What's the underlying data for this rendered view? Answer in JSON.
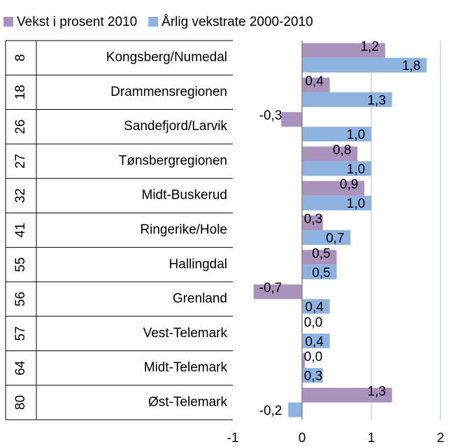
{
  "chart_data": {
    "type": "bar",
    "orientation": "horizontal",
    "categories": [
      "Kongsberg/Numedal",
      "Drammensregionen",
      "Sandefjord/Larvik",
      "Tønsbergregionen",
      "Midt-Buskerud",
      "Ringerike/Hole",
      "Hallingdal",
      "Grenland",
      "Vest-Telemark",
      "Midt-Telemark",
      "Øst-Telemark"
    ],
    "category_codes": [
      "8",
      "18",
      "26",
      "27",
      "32",
      "41",
      "55",
      "56",
      "57",
      "64",
      "80"
    ],
    "series": [
      {
        "name": "Vekst i prosent 2010",
        "color": "#a993bd",
        "values": [
          1.2,
          0.4,
          -0.3,
          0.8,
          0.9,
          0.3,
          0.5,
          -0.7,
          0,
          0.04,
          1.3
        ],
        "value_labels": [
          "1,2",
          "0,4",
          "-0,3",
          "0,8",
          "0,9",
          "0,3",
          "0,5",
          "-0,7",
          "0,0",
          "0,0",
          "1,3"
        ]
      },
      {
        "name": "Årlig vekstrate 2000-2010",
        "color": "#8fb3e0",
        "values": [
          1.8,
          1.3,
          1.0,
          1.0,
          1.0,
          0.7,
          0.5,
          0.4,
          0.4,
          0.3,
          -0.2
        ],
        "value_labels": [
          "1,8",
          "1,3",
          "1,0",
          "1,0",
          "1,0",
          "0,7",
          "0,5",
          "0,4",
          "0,4",
          "0,3",
          "-0,2"
        ]
      }
    ],
    "xlim": [
      -1,
      2
    ],
    "xticks": [
      -1,
      0,
      1,
      2
    ],
    "grid": true,
    "legend": "top"
  }
}
